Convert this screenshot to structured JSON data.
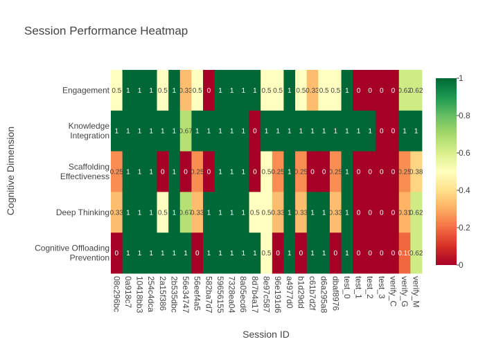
{
  "chart_data": {
    "type": "heatmap",
    "title": "Session Performance Heatmap",
    "xlabel": "Session ID",
    "ylabel": "Cognitive Dimension",
    "x": [
      "08c296bc",
      "0a918c7",
      "10418bb3",
      "254c4dca",
      "2a15f386",
      "2b535dbc",
      "56e34747",
      "56eef4a5",
      "582ba7d7",
      "59656155",
      "7328ea04",
      "8a05ecd6",
      "8d7b4a17",
      "8e97c587",
      "96e191d6",
      "a4977d0",
      "b1d29dd",
      "c61b7d2f",
      "d6a295a8",
      "dbaf8976",
      "test_0",
      "test_1",
      "test_2",
      "test_3",
      "verify_C",
      "verify_G",
      "verify_M"
    ],
    "y": [
      {
        "name": "Engagement",
        "lines": [
          "Engagement"
        ]
      },
      {
        "name": "Knowledge Integration",
        "lines": [
          "Knowledge",
          "Integration"
        ]
      },
      {
        "name": "Scaffolding Effectiveness",
        "lines": [
          "Scaffolding",
          "Effectiveness"
        ]
      },
      {
        "name": "Deep Thinking",
        "lines": [
          "Deep Thinking"
        ]
      },
      {
        "name": "Cognitive Offloading Prevention",
        "lines": [
          "Cognitive Offloading",
          "Prevention"
        ]
      }
    ],
    "z": [
      [
        0.5,
        1,
        1,
        1,
        0.5,
        1,
        0.33,
        0.5,
        0,
        1,
        1,
        1,
        1,
        0.5,
        0.5,
        1,
        0.5,
        0.33,
        0.5,
        0.5,
        1,
        0,
        0,
        0,
        0,
        0.62,
        0.62
      ],
      [
        1,
        1,
        1,
        1,
        1,
        1,
        0.67,
        1,
        1,
        1,
        1,
        1,
        0,
        1,
        1,
        1,
        1,
        1,
        1,
        1,
        1,
        1,
        1,
        0,
        0,
        1,
        1
      ],
      [
        0.25,
        1,
        1,
        1,
        0,
        1,
        0,
        0.25,
        0,
        1,
        1,
        1,
        0,
        0.5,
        0.25,
        1,
        0.25,
        0,
        0,
        0.25,
        1,
        0,
        0,
        0,
        0,
        0.25,
        0.38
      ],
      [
        0.33,
        1,
        1,
        1,
        0.5,
        1,
        0.67,
        0.33,
        1,
        1,
        1,
        1,
        0.5,
        0.5,
        0.33,
        1,
        0.33,
        1,
        1,
        0.33,
        1,
        0,
        0,
        0,
        0,
        0.31,
        0.62
      ],
      [
        0,
        1,
        1,
        1,
        1,
        1,
        1,
        0,
        1,
        1,
        1,
        1,
        1,
        0.5,
        0,
        1,
        0,
        1,
        1,
        0,
        1,
        0,
        0,
        0,
        0,
        0.19,
        0.62
      ]
    ],
    "cell_labels": [
      [
        "0.5",
        "1",
        "1",
        "1",
        "0.5",
        "1",
        "0.33",
        "0.5",
        "0",
        "1",
        "1",
        "1",
        "1",
        "0.5",
        "0.5",
        "1",
        "0.5",
        "0.33",
        "0.5",
        "0.5",
        "1",
        "0",
        "0",
        "0",
        "0",
        "0.62",
        "0.62"
      ],
      [
        "1",
        "1",
        "1",
        "1",
        "1",
        "1",
        "0.67",
        "1",
        "1",
        "1",
        "1",
        "1",
        "0",
        "1",
        "1",
        "1",
        "1",
        "1",
        "1",
        "1",
        "1",
        "1",
        "1",
        "0",
        "0",
        "1",
        "1"
      ],
      [
        "0.25",
        "1",
        "1",
        "1",
        "0",
        "1",
        "0",
        "0.25",
        "0",
        "1",
        "1",
        "1",
        "0",
        "0.5",
        "0.25",
        "1",
        "0.25",
        "0",
        "0",
        "0.25",
        "1",
        "0",
        "0",
        "0",
        "0",
        "0.25",
        "0.38"
      ],
      [
        "0.33",
        "1",
        "1",
        "1",
        "0.5",
        "1",
        "0.67",
        "0.33",
        "1",
        "1",
        "1",
        "1",
        "0.5",
        "0.5",
        "0.33",
        "1",
        "0.33",
        "1",
        "1",
        "0.33",
        "1",
        "0",
        "0",
        "0",
        "0",
        "0.31",
        "0.62"
      ],
      [
        "0",
        "1",
        "1",
        "1",
        "1",
        "1",
        "1",
        "0",
        "1",
        "1",
        "1",
        "1",
        "1",
        "0.5",
        "0",
        "1",
        "0",
        "1",
        "1",
        "0",
        "1",
        "0",
        "0",
        "0",
        "0",
        "0.19",
        "0.62"
      ]
    ],
    "zlim": [
      0,
      1
    ],
    "colorscale": "RdYlGn",
    "colorbar_ticks": [
      "0",
      "0.2",
      "0.4",
      "0.6",
      "0.8",
      "1"
    ],
    "colorbar_tick_values": [
      0,
      0.2,
      0.4,
      0.6,
      0.8,
      1
    ],
    "legend": "colorbar-right",
    "grid": false
  }
}
